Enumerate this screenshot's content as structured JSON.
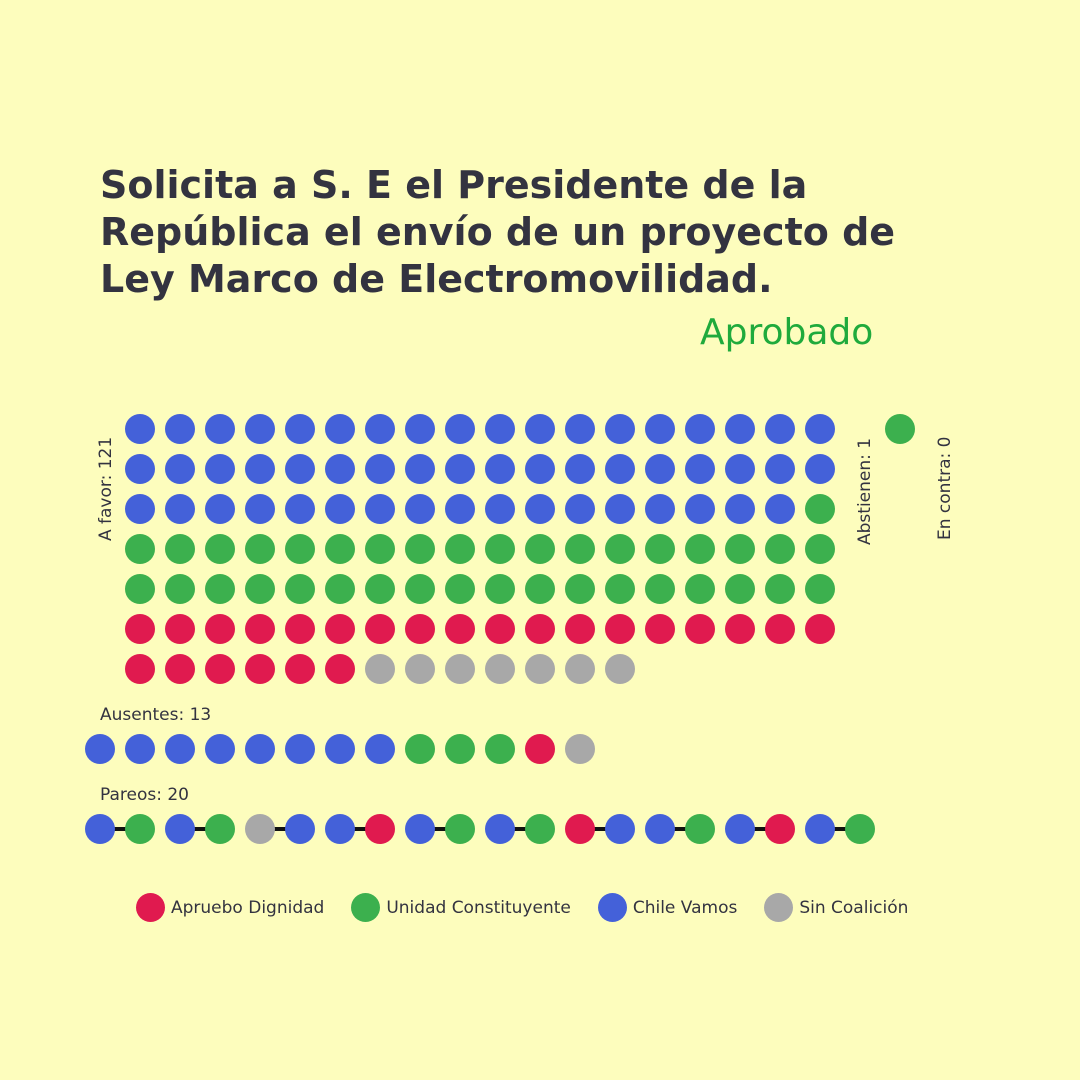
{
  "title": "Solicita a S. E el Presidente de la República el envío de un proyecto de Ley Marco de Electromovilidad.",
  "result": "Aprobado",
  "colors": {
    "Apruebo Dignidad": "#e01a4f",
    "Unidad Constituyente": "#3cb04e",
    "Chile Vamos": "#4461d9",
    "Sin Coalición": "#a8a8a8",
    "result": "#1faa3c",
    "background": "#fdfdbd"
  },
  "labels": {
    "a_favor": "A favor: 121",
    "abstienen": "Abstienen: 1",
    "en_contra": "En contra: 0",
    "ausentes": "Ausentes: 13",
    "pareos": "Pareos: 20"
  },
  "legend": [
    {
      "name": "Apruebo Dignidad",
      "color": "#e01a4f"
    },
    {
      "name": "Unidad Constituyente",
      "color": "#3cb04e"
    },
    {
      "name": "Chile Vamos",
      "color": "#4461d9"
    },
    {
      "name": "Sin Coalición",
      "color": "#a8a8a8"
    }
  ],
  "chart_data": {
    "type": "waffle",
    "groups": [
      {
        "name": "A favor",
        "total": 121,
        "counts": {
          "Chile Vamos": 53,
          "Unidad Constituyente": 37,
          "Apruebo Dignidad": 24,
          "Sin Coalición": 7
        }
      },
      {
        "name": "Abstienen",
        "total": 1,
        "counts": {
          "Unidad Constituyente": 1
        }
      },
      {
        "name": "En contra",
        "total": 0,
        "counts": {}
      },
      {
        "name": "Ausentes",
        "total": 13,
        "counts": {
          "Chile Vamos": 8,
          "Unidad Constituyente": 3,
          "Apruebo Dignidad": 1,
          "Sin Coalición": 1
        }
      },
      {
        "name": "Pareos",
        "total": 20,
        "sequence": [
          "Chile Vamos",
          "Unidad Constituyente",
          "Chile Vamos",
          "Unidad Constituyente",
          "Sin Coalición",
          "Chile Vamos",
          "Chile Vamos",
          "Apruebo Dignidad",
          "Chile Vamos",
          "Unidad Constituyente",
          "Chile Vamos",
          "Unidad Constituyente",
          "Apruebo Dignidad",
          "Chile Vamos",
          "Chile Vamos",
          "Unidad Constituyente",
          "Chile Vamos",
          "Apruebo Dignidad",
          "Chile Vamos",
          "Unidad Constituyente"
        ]
      }
    ]
  }
}
